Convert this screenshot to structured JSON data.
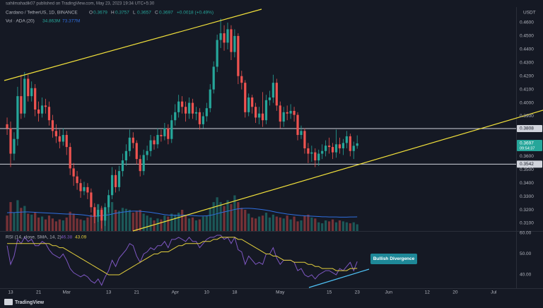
{
  "credit": "sahilmahadik07 published on TradingView.com, May 23, 2023 19:34 UTC+5:30",
  "brand": "TradingView",
  "chart_data": [
    {
      "type": "candlestick",
      "title": "Cardano / TetherUS, 1D, BINANCE",
      "ohlc_labels": [
        "O",
        "H",
        "L",
        "C"
      ],
      "change": "+0.0018 (+0.49%)",
      "y_unit": "USDT",
      "colors": {
        "up": "#26a69a",
        "down": "#ef5350"
      },
      "open": [
        0.384,
        0.381,
        0.362,
        0.373,
        0.405,
        0.392,
        0.418,
        0.405,
        0.411,
        0.395,
        0.392,
        0.398,
        0.397,
        0.387,
        0.379,
        0.375,
        0.371,
        0.376,
        0.367,
        0.351,
        0.345,
        0.34,
        0.334,
        0.337,
        0.333,
        0.322,
        0.315,
        0.32,
        0.312,
        0.322,
        0.331,
        0.346,
        0.337,
        0.349,
        0.357,
        0.364,
        0.374,
        0.37,
        0.358,
        0.349,
        0.361,
        0.364,
        0.372,
        0.369,
        0.376,
        0.375,
        0.381,
        0.373,
        0.387,
        0.393,
        0.401,
        0.397,
        0.392,
        0.4,
        0.392,
        0.393,
        0.384,
        0.39,
        0.396,
        0.41,
        0.427,
        0.447,
        0.452,
        0.445,
        0.455,
        0.438,
        0.45,
        0.42,
        0.415,
        0.393,
        0.404,
        0.397,
        0.389,
        0.392,
        0.387,
        0.402,
        0.404,
        0.415,
        0.398,
        0.386,
        0.393,
        0.392,
        0.394,
        0.391,
        0.376,
        0.379,
        0.366,
        0.362,
        0.363,
        0.357,
        0.362,
        0.364,
        0.368,
        0.367,
        0.363,
        0.369,
        0.366,
        0.37,
        0.375,
        0.364,
        0.3679
      ],
      "high": [
        0.389,
        0.386,
        0.378,
        0.412,
        0.421,
        0.423,
        0.421,
        0.416,
        0.414,
        0.401,
        0.404,
        0.403,
        0.401,
        0.391,
        0.384,
        0.38,
        0.381,
        0.379,
        0.37,
        0.355,
        0.349,
        0.343,
        0.341,
        0.34,
        0.336,
        0.325,
        0.324,
        0.323,
        0.325,
        0.335,
        0.352,
        0.35,
        0.353,
        0.362,
        0.369,
        0.38,
        0.378,
        0.372,
        0.361,
        0.365,
        0.368,
        0.376,
        0.375,
        0.381,
        0.38,
        0.385,
        0.384,
        0.391,
        0.399,
        0.406,
        0.405,
        0.401,
        0.404,
        0.403,
        0.397,
        0.396,
        0.393,
        0.4,
        0.414,
        0.431,
        0.451,
        0.463,
        0.458,
        0.46,
        0.458,
        0.455,
        0.452,
        0.424,
        0.417,
        0.407,
        0.406,
        0.4,
        0.397,
        0.408,
        0.406,
        0.409,
        0.421,
        0.418,
        0.401,
        0.397,
        0.398,
        0.399,
        0.397,
        0.393,
        0.383,
        0.381,
        0.37,
        0.368,
        0.366,
        0.365,
        0.369,
        0.372,
        0.374,
        0.37,
        0.38,
        0.374,
        0.373,
        0.379,
        0.377,
        0.371,
        0.3757
      ],
      "low": [
        0.376,
        0.352,
        0.357,
        0.368,
        0.388,
        0.389,
        0.401,
        0.401,
        0.39,
        0.386,
        0.389,
        0.392,
        0.383,
        0.374,
        0.37,
        0.366,
        0.368,
        0.361,
        0.346,
        0.338,
        0.335,
        0.329,
        0.331,
        0.328,
        0.318,
        0.31,
        0.311,
        0.306,
        0.308,
        0.318,
        0.328,
        0.333,
        0.334,
        0.345,
        0.353,
        0.36,
        0.366,
        0.354,
        0.345,
        0.346,
        0.357,
        0.36,
        0.365,
        0.366,
        0.371,
        0.372,
        0.369,
        0.37,
        0.383,
        0.389,
        0.392,
        0.386,
        0.388,
        0.388,
        0.387,
        0.38,
        0.381,
        0.386,
        0.393,
        0.407,
        0.423,
        0.441,
        0.439,
        0.44,
        0.432,
        0.434,
        0.414,
        0.41,
        0.389,
        0.39,
        0.392,
        0.385,
        0.384,
        0.382,
        0.384,
        0.398,
        0.4,
        0.394,
        0.381,
        0.382,
        0.387,
        0.388,
        0.386,
        0.372,
        0.373,
        0.362,
        0.355,
        0.356,
        0.352,
        0.353,
        0.358,
        0.36,
        0.362,
        0.358,
        0.359,
        0.362,
        0.361,
        0.366,
        0.36,
        0.358,
        0.3657
      ],
      "close": [
        0.381,
        0.362,
        0.373,
        0.405,
        0.392,
        0.418,
        0.405,
        0.411,
        0.395,
        0.392,
        0.398,
        0.397,
        0.387,
        0.379,
        0.375,
        0.371,
        0.376,
        0.367,
        0.351,
        0.345,
        0.34,
        0.334,
        0.337,
        0.333,
        0.322,
        0.315,
        0.32,
        0.312,
        0.322,
        0.331,
        0.346,
        0.337,
        0.349,
        0.357,
        0.364,
        0.374,
        0.37,
        0.358,
        0.349,
        0.361,
        0.364,
        0.372,
        0.369,
        0.376,
        0.375,
        0.381,
        0.373,
        0.387,
        0.393,
        0.401,
        0.397,
        0.392,
        0.4,
        0.392,
        0.393,
        0.384,
        0.39,
        0.396,
        0.41,
        0.427,
        0.447,
        0.452,
        0.445,
        0.455,
        0.438,
        0.45,
        0.42,
        0.415,
        0.393,
        0.404,
        0.397,
        0.389,
        0.392,
        0.387,
        0.402,
        0.404,
        0.415,
        0.398,
        0.386,
        0.393,
        0.392,
        0.394,
        0.391,
        0.376,
        0.379,
        0.366,
        0.362,
        0.363,
        0.357,
        0.362,
        0.364,
        0.368,
        0.367,
        0.363,
        0.369,
        0.366,
        0.37,
        0.375,
        0.364,
        0.3679,
        0.3697
      ],
      "ylim": [
        0.3042,
        0.4716
      ],
      "yticks": [
        {
          "value": 0.46,
          "label": "0.4600"
        },
        {
          "value": 0.45,
          "label": "0.4500"
        },
        {
          "value": 0.44,
          "label": "0.4400"
        },
        {
          "value": 0.43,
          "label": "0.4300"
        },
        {
          "value": 0.42,
          "label": "0.4200"
        },
        {
          "value": 0.41,
          "label": "0.4100"
        },
        {
          "value": 0.4,
          "label": "0.4000"
        },
        {
          "value": 0.39,
          "label": "0.3900"
        },
        {
          "value": 0.36,
          "label": "0.3600"
        },
        {
          "value": 0.35,
          "label": "0.3500"
        },
        {
          "value": 0.34,
          "label": "0.3400"
        },
        {
          "value": 0.33,
          "label": "0.3300"
        },
        {
          "value": 0.32,
          "label": "0.3200"
        },
        {
          "value": 0.31,
          "label": "0.3100"
        }
      ],
      "xlim": [
        -2.03,
        145.4
      ],
      "xticks": [
        {
          "value": 1,
          "label": "13"
        },
        {
          "value": 9,
          "label": "21"
        },
        {
          "value": 17,
          "label": "Mar"
        },
        {
          "value": 29,
          "label": "13"
        },
        {
          "value": 37,
          "label": "21"
        },
        {
          "value": 48,
          "label": "Apr"
        },
        {
          "value": 57,
          "label": "10"
        },
        {
          "value": 65,
          "label": "18"
        },
        {
          "value": 78,
          "label": "May"
        },
        {
          "value": 92,
          "label": "15"
        },
        {
          "value": 100,
          "label": "23"
        },
        {
          "value": 109,
          "label": "Jun"
        },
        {
          "value": 120,
          "label": "12"
        },
        {
          "value": 128,
          "label": "20"
        },
        {
          "value": 139,
          "label": "Jul"
        }
      ],
      "hlines": [
        0.3808,
        0.3542
      ],
      "countdown": "09:54:37",
      "grid": false,
      "volume": {
        "name": "Vol · ADA (20)",
        "readouts": [
          "34.863M",
          "73.377M"
        ],
        "ylim": [
          0,
          330
        ],
        "values": [
          80,
          150,
          95,
          160,
          120,
          130,
          90,
          85,
          95,
          70,
          75,
          60,
          80,
          65,
          50,
          60,
          55,
          70,
          100,
          90,
          65,
          60,
          55,
          70,
          85,
          110,
          140,
          120,
          95,
          130,
          150,
          110,
          105,
          120,
          115,
          110,
          95,
          105,
          110,
          90,
          80,
          70,
          55,
          65,
          60,
          80,
          75,
          90,
          85,
          95,
          110,
          80,
          65,
          70,
          55,
          60,
          75,
          80,
          120,
          150,
          175,
          150,
          130,
          160,
          140,
          185,
          150,
          120,
          110,
          90,
          70,
          65,
          75,
          80,
          95,
          70,
          85,
          75,
          70,
          65,
          80,
          60,
          75,
          50,
          55,
          80,
          85,
          70,
          65,
          45,
          40,
          55,
          50,
          60,
          45,
          55,
          50,
          45,
          40,
          45,
          34.863
        ],
        "ma": {
          "color": "#2f6fe0",
          "values": [
            95,
            96,
            96,
            97,
            98,
            99,
            99,
            98,
            97,
            96,
            95,
            94,
            93,
            92,
            91,
            90,
            89,
            88,
            88,
            87,
            86,
            85,
            83,
            80,
            77,
            76,
            78,
            80,
            82,
            84,
            88,
            92,
            95,
            98,
            100,
            102,
            103,
            103,
            102,
            101,
            99,
            97,
            94,
            91,
            88,
            85,
            83,
            82,
            81,
            81,
            82,
            82,
            81,
            80,
            79,
            78,
            78,
            79,
            81,
            85,
            90,
            95,
            99,
            103,
            107,
            112,
            115,
            117,
            118,
            118,
            117,
            115,
            113,
            111,
            108,
            105,
            101,
            97,
            94,
            91,
            88,
            86,
            84,
            82,
            80,
            79,
            78,
            77,
            76,
            75,
            74,
            74,
            73,
            73,
            73,
            72,
            72,
            72,
            73,
            73,
            73.377
          ]
        }
      }
    },
    {
      "type": "line",
      "title": "RSI (14, close, SMA, 14, 2)",
      "readouts": [
        "46.38",
        "43.09"
      ],
      "annotations": [
        "Bullish Divergence"
      ],
      "xlim": [
        -2.03,
        145.4
      ],
      "ylim": [
        33.56,
        60.68
      ],
      "yticks": [
        {
          "value": 60,
          "label": "60.00"
        },
        {
          "value": 50,
          "label": "50.00"
        },
        {
          "value": 40,
          "label": "40.00"
        }
      ],
      "series": [
        {
          "color": "#7e57c2",
          "values": [
            54,
            45,
            49,
            57,
            55,
            58,
            56,
            57,
            54,
            54,
            56,
            55,
            52,
            50,
            49,
            48,
            50,
            47,
            43,
            41,
            40,
            39,
            40,
            39,
            37,
            36,
            38,
            35,
            39,
            42,
            47,
            44,
            48,
            50,
            52,
            55,
            54,
            49,
            46,
            50,
            51,
            53,
            52,
            54,
            54,
            56,
            53,
            57,
            57,
            58,
            57,
            56,
            58,
            56,
            56,
            53,
            55,
            57,
            58,
            58,
            59,
            59,
            57,
            58,
            55,
            58,
            52,
            51,
            45,
            49,
            47,
            45,
            46,
            45,
            50,
            50,
            53,
            48,
            45,
            47,
            47,
            47,
            46,
            42,
            43,
            40,
            39,
            40,
            38,
            40,
            41,
            42,
            42,
            41,
            40,
            43,
            42,
            44,
            46,
            42,
            46.38
          ]
        },
        {
          "color": "#e3cf3c",
          "values": [
            55,
            55,
            55,
            55,
            55,
            55,
            55,
            55,
            55,
            55,
            55,
            55,
            55,
            54,
            54,
            53,
            53,
            52,
            51,
            50,
            49,
            48,
            47,
            46,
            45,
            44,
            43,
            42,
            41,
            40,
            40,
            40,
            40,
            41,
            42,
            43,
            44,
            45,
            46,
            47,
            48,
            49,
            50,
            50,
            51,
            51,
            51,
            52,
            53,
            54,
            54,
            55,
            55,
            55,
            55,
            55,
            56,
            56,
            56,
            57,
            57,
            58,
            58,
            58,
            58,
            58,
            57,
            57,
            56,
            55,
            54,
            53,
            52,
            51,
            50,
            50,
            49,
            49,
            48,
            47,
            47,
            47,
            46,
            46,
            46,
            46,
            45,
            45,
            44,
            44,
            43,
            43,
            43,
            43,
            42,
            42,
            42,
            42,
            43,
            43,
            43.09
          ]
        }
      ]
    }
  ]
}
